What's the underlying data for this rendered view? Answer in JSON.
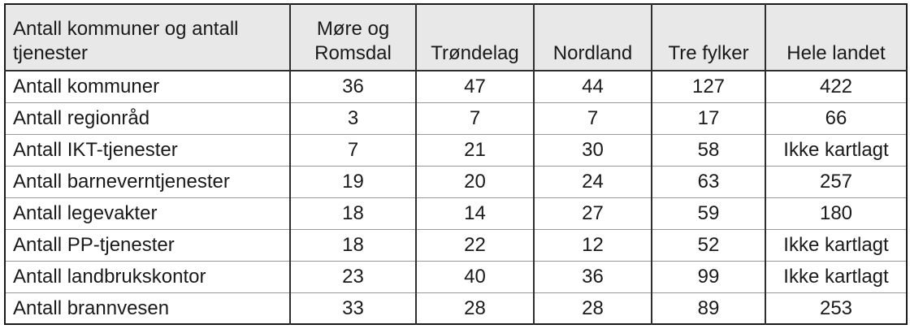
{
  "colors": {
    "header_bg": "#e8e8e8",
    "border_outer": "#1a1a1a",
    "border_vertical": "#2e2e2e",
    "border_row": "#999999",
    "text": "#1a1a1a",
    "page_bg": "#ffffff"
  },
  "table": {
    "corner_header": "Antall kommuner og antall tjenester",
    "columns": [
      "Møre og Romsdal",
      "Trøndelag",
      "Nordland",
      "Tre fylker",
      "Hele landet"
    ],
    "rows": [
      {
        "label": "Antall kommuner",
        "values": [
          "36",
          "47",
          "44",
          "127",
          "422"
        ]
      },
      {
        "label": "Antall regionråd",
        "values": [
          "3",
          "7",
          "7",
          "17",
          "66"
        ]
      },
      {
        "label": "Antall IKT-tjenester",
        "values": [
          "7",
          "21",
          "30",
          "58",
          "Ikke kartlagt"
        ]
      },
      {
        "label": "Antall barneverntjenester",
        "values": [
          "19",
          "20",
          "24",
          "63",
          "257"
        ]
      },
      {
        "label": "Antall legevakter",
        "values": [
          "18",
          "14",
          "27",
          "59",
          "180"
        ]
      },
      {
        "label": "Antall PP-tjenester",
        "values": [
          "18",
          "22",
          "12",
          "52",
          "Ikke kartlagt"
        ]
      },
      {
        "label": "Antall landbrukskontor",
        "values": [
          "23",
          "40",
          "36",
          "99",
          "Ikke kartlagt"
        ]
      },
      {
        "label": "Antall brannvesen",
        "values": [
          "33",
          "28",
          "28",
          "89",
          "253"
        ]
      }
    ]
  }
}
